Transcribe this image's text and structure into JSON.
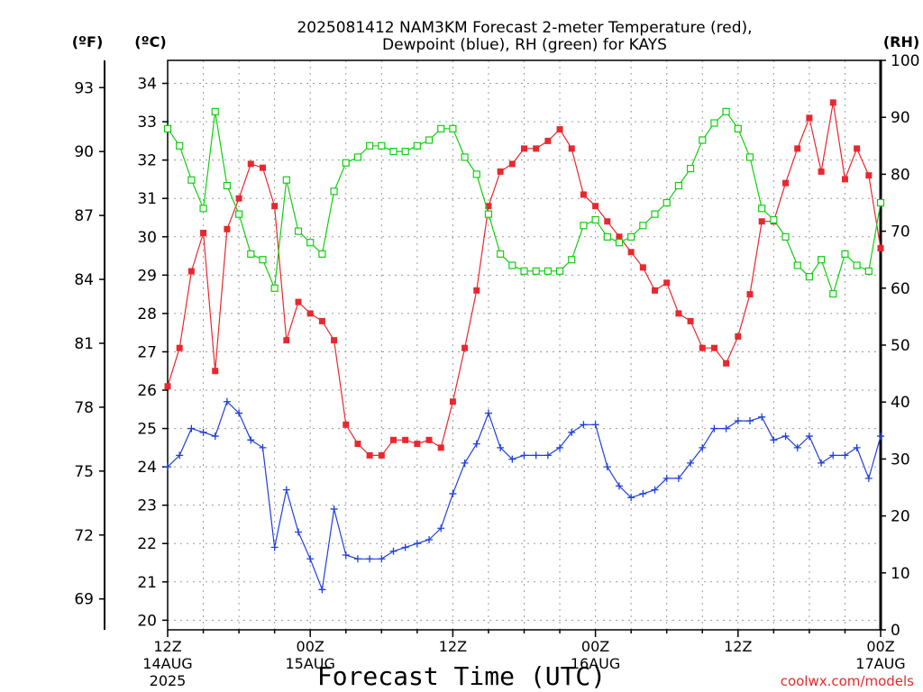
{
  "title_line1": "2025081412 NAM3KM Forecast 2-meter Temperature (red),",
  "title_line2": "Dewpoint (blue), RH (green) for KAYS",
  "unit_f": "(ºF)",
  "unit_c": "(ºC)",
  "unit_rh": "(RH)",
  "xlabel": "Forecast Time (UTC)",
  "credit": "coolwx.com/models",
  "colors": {
    "temperature": "#e8282e",
    "dewpoint": "#2040d8",
    "rh": "#10d010"
  },
  "chart_data": {
    "type": "line",
    "x_unit": "forecast hour (0 = 12Z 14AUG 2025)",
    "xlim": [
      0,
      60
    ],
    "ylim_c": [
      19.75,
      34.6
    ],
    "ylim_rh": [
      0,
      100
    ],
    "x_ticks": [
      {
        "h": 0,
        "label": "12Z",
        "sub1": "14AUG",
        "sub2": "2025"
      },
      {
        "h": 12,
        "label": "00Z",
        "sub1": "15AUG",
        "sub2": ""
      },
      {
        "h": 24,
        "label": "12Z",
        "sub1": "",
        "sub2": ""
      },
      {
        "h": 36,
        "label": "00Z",
        "sub1": "16AUG",
        "sub2": ""
      },
      {
        "h": 48,
        "label": "12Z",
        "sub1": "",
        "sub2": ""
      },
      {
        "h": 60,
        "label": "00Z",
        "sub1": "17AUG",
        "sub2": ""
      }
    ],
    "c_ticks": [
      "20",
      "21",
      "22",
      "23",
      "24",
      "25",
      "26",
      "27",
      "28",
      "29",
      "30",
      "31",
      "32",
      "33",
      "34"
    ],
    "f_ticks": [
      "69",
      "72",
      "75",
      "78",
      "81",
      "84",
      "87",
      "90",
      "93"
    ],
    "rh_ticks": [
      "0",
      "10",
      "20",
      "30",
      "40",
      "50",
      "60",
      "70",
      "80",
      "90",
      "100"
    ],
    "series": [
      {
        "name": "2-meter Temperature",
        "key": "temperature",
        "marker": "square",
        "x": [
          0,
          1,
          2,
          3,
          4,
          5,
          6,
          7,
          8,
          9,
          10,
          11,
          12,
          13,
          14,
          15,
          16,
          17,
          18,
          19,
          20,
          21,
          22,
          23,
          24,
          25,
          26,
          27,
          28,
          29,
          30,
          31,
          32,
          33,
          34,
          35,
          36,
          37,
          38,
          39,
          40,
          41,
          42,
          43,
          44,
          45,
          46,
          47,
          48,
          49,
          50,
          51,
          52,
          53,
          54,
          55,
          56,
          57,
          58,
          59,
          60
        ],
        "y": [
          26.1,
          27.1,
          29.1,
          30.1,
          26.5,
          30.2,
          31.0,
          31.9,
          31.8,
          30.8,
          27.3,
          28.3,
          28.0,
          27.8,
          27.3,
          25.1,
          24.6,
          24.3,
          24.3,
          24.7,
          24.7,
          24.6,
          24.7,
          24.5,
          25.7,
          27.1,
          28.6,
          30.8,
          31.7,
          31.9,
          32.3,
          32.3,
          32.5,
          32.8,
          32.3,
          31.1,
          30.8,
          30.4,
          30.0,
          29.6,
          29.2,
          28.6,
          28.8,
          28.0,
          27.8,
          27.1,
          27.1,
          26.7,
          27.4,
          28.5,
          30.4,
          30.4,
          31.4,
          32.3,
          33.1,
          31.7,
          33.5,
          31.5,
          32.3,
          31.6,
          29.7
        ]
      },
      {
        "name": "Dewpoint",
        "key": "dewpoint",
        "marker": "plus",
        "x": [
          0,
          1,
          2,
          3,
          4,
          5,
          6,
          7,
          8,
          9,
          10,
          11,
          12,
          13,
          14,
          15,
          16,
          17,
          18,
          19,
          20,
          21,
          22,
          23,
          24,
          25,
          26,
          27,
          28,
          29,
          30,
          31,
          32,
          33,
          34,
          35,
          36,
          37,
          38,
          39,
          40,
          41,
          42,
          43,
          44,
          45,
          46,
          47,
          48,
          49,
          50,
          51,
          52,
          53,
          54,
          55,
          56,
          57,
          58,
          59,
          60
        ],
        "y": [
          24.0,
          24.3,
          25.0,
          24.9,
          24.8,
          25.7,
          25.4,
          24.7,
          24.5,
          21.9,
          23.4,
          22.3,
          21.6,
          20.8,
          22.9,
          21.7,
          21.6,
          21.6,
          21.6,
          21.8,
          21.9,
          22.0,
          22.1,
          22.4,
          23.3,
          24.1,
          24.6,
          25.4,
          24.5,
          24.2,
          24.3,
          24.3,
          24.3,
          24.5,
          24.9,
          25.1,
          25.1,
          24.0,
          23.5,
          23.2,
          23.3,
          23.4,
          23.7,
          23.7,
          24.1,
          24.5,
          25.0,
          25.0,
          25.2,
          25.2,
          25.3,
          24.7,
          24.8,
          24.5,
          24.8,
          24.1,
          24.3,
          24.3,
          24.5,
          23.7,
          24.8
        ]
      },
      {
        "name": "RH",
        "key": "rh",
        "marker": "open-square",
        "x": [
          0,
          1,
          2,
          3,
          4,
          5,
          6,
          7,
          8,
          9,
          10,
          11,
          12,
          13,
          14,
          15,
          16,
          17,
          18,
          19,
          20,
          21,
          22,
          23,
          24,
          25,
          26,
          27,
          28,
          29,
          30,
          31,
          32,
          33,
          34,
          35,
          36,
          37,
          38,
          39,
          40,
          41,
          42,
          43,
          44,
          45,
          46,
          47,
          48,
          49,
          50,
          51,
          52,
          53,
          54,
          55,
          56,
          57,
          58,
          59,
          60
        ],
        "y": [
          88,
          85,
          79,
          74,
          91,
          78,
          73,
          66,
          65,
          60,
          79,
          70,
          68,
          66,
          77,
          82,
          83,
          85,
          85,
          84,
          84,
          85,
          86,
          88,
          88,
          83,
          80,
          73,
          66,
          64,
          63,
          63,
          63,
          63,
          65,
          71,
          72,
          69,
          68,
          69,
          71,
          73,
          75,
          78,
          81,
          86,
          89,
          91,
          88,
          83,
          74,
          72,
          69,
          64,
          62,
          65,
          59,
          66,
          64,
          63,
          75
        ]
      }
    ]
  }
}
